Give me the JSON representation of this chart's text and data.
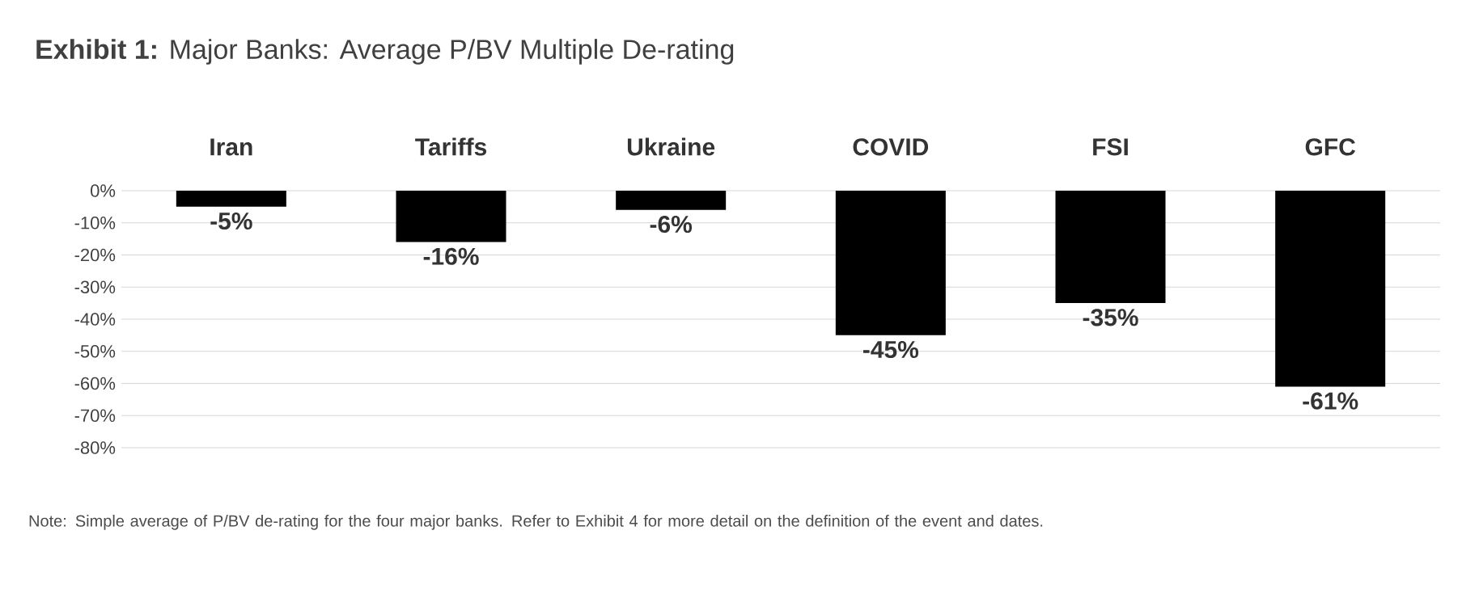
{
  "chart_data": {
    "type": "bar",
    "title": "**Exhibit 1:**   Major Banks: Average P/BV Multiple De-rating",
    "categories": [
      "Iran",
      "Tariffs",
      "Ukraine",
      "COVID",
      "FSI",
      "GFC"
    ],
    "values": [
      -5,
      -16,
      -6,
      -45,
      -35,
      -61
    ],
    "value_labels": [
      "-5%",
      "-16%",
      "-6%",
      "-45%",
      "-35%",
      "-61%"
    ],
    "color": "#000000",
    "ylim": [
      -80,
      0
    ],
    "yticks": [
      {
        "value": 0,
        "label": "0%"
      },
      {
        "value": -10,
        "label": "-10%"
      },
      {
        "value": -20,
        "label": "-20%"
      },
      {
        "value": -30,
        "label": "-30%"
      },
      {
        "value": -40,
        "label": "-40%"
      },
      {
        "value": -50,
        "label": "-50%"
      },
      {
        "value": -60,
        "label": "-60%"
      },
      {
        "value": -70,
        "label": "-70%"
      },
      {
        "value": -80,
        "label": "-80%"
      }
    ],
    "grid": "y",
    "annotations": [
      "Note: Simple average of P/BV de-rating for the four major banks. Refer to Exhibit 4 for more detail on the definition of the event and dates."
    ]
  }
}
